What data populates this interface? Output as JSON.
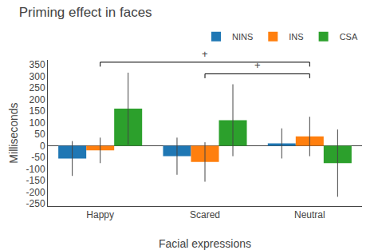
{
  "chart_data": {
    "type": "bar",
    "title": "Priming effect in faces",
    "xlabel": "Facial expressions",
    "ylabel": "Milliseconds",
    "categories": [
      "Happy",
      "Scared",
      "Neutral"
    ],
    "series": [
      {
        "name": "NINS",
        "values": [
          -55,
          -45,
          10
        ],
        "errors": [
          75,
          80,
          65
        ]
      },
      {
        "name": "INS",
        "values": [
          -20,
          -70,
          40
        ],
        "errors": [
          55,
          85,
          85
        ]
      },
      {
        "name": "CSA",
        "values": [
          160,
          110,
          -75
        ],
        "errors": [
          155,
          155,
          145
        ]
      }
    ],
    "ylim": [
      -260,
      370
    ],
    "yticks": [
      -250,
      -200,
      -150,
      -100,
      -50,
      0,
      50,
      100,
      150,
      200,
      250,
      300,
      350
    ],
    "annotations": [
      {
        "text": "+",
        "from": "Happy",
        "to": "Neutral",
        "y": 360
      },
      {
        "text": "+",
        "from": "Scared",
        "to": "Neutral",
        "y": 310
      }
    ],
    "grid": false,
    "legend": "upper right"
  }
}
